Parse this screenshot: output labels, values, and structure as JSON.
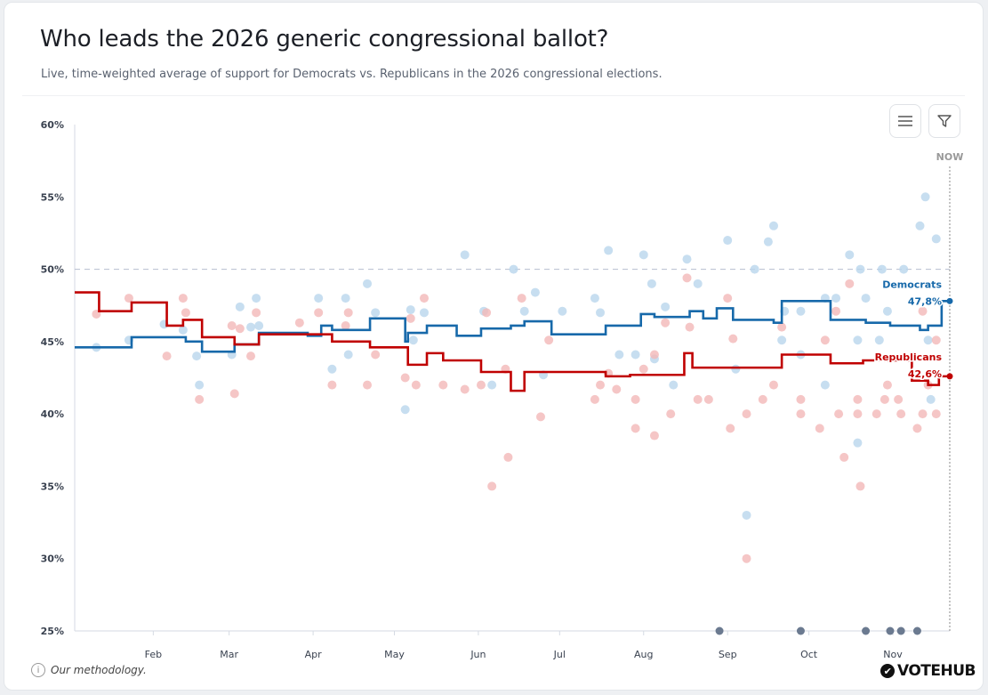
{
  "header": {
    "title": "Who leads the 2026 generic congressional ballot?",
    "subtitle": "Live, time-weighted average of support for Democrats vs. Republicans in the 2026 congressional elections."
  },
  "toolbar": {
    "menu_icon": "hamburger-icon",
    "filter_icon": "filter-icon"
  },
  "footer": {
    "methodology": "Our methodology.",
    "info_icon": "i",
    "logo": "VOTEHUB"
  },
  "colors": {
    "dem": "#1769aa",
    "rep": "#c00000",
    "dem_dot": "#b9d6ec",
    "rep_dot": "#f2b8b8",
    "marker": "#6b7a90"
  },
  "chart_data": {
    "type": "line",
    "title": "Who leads the 2026 generic congressional ballot?",
    "xlabel": "",
    "ylabel": "",
    "x_unit": "day of year 2025",
    "xlim": [
      2,
      325
    ],
    "ylim": [
      25,
      60
    ],
    "yticks": [
      25,
      30,
      35,
      40,
      45,
      50,
      55,
      60
    ],
    "ytick_labels": [
      "25%",
      "30%",
      "35%",
      "40%",
      "45%",
      "50%",
      "55%",
      "60%"
    ],
    "xticks": [
      31,
      59,
      90,
      120,
      151,
      181,
      212,
      243,
      273,
      304
    ],
    "xtick_labels": [
      "Feb",
      "Mar",
      "Apr",
      "May",
      "Jun",
      "Jul",
      "Aug",
      "Sep",
      "Oct",
      "Nov"
    ],
    "reference_line": 50,
    "now_label": "NOW",
    "series": [
      {
        "name": "Democrats",
        "end_label": "47,8%",
        "step": [
          [
            2,
            44.6
          ],
          [
            23,
            45.3
          ],
          [
            43,
            45.0
          ],
          [
            49,
            44.3
          ],
          [
            61,
            44.8
          ],
          [
            70,
            45.6
          ],
          [
            88,
            45.4
          ],
          [
            93,
            46.1
          ],
          [
            97,
            45.8
          ],
          [
            111,
            46.6
          ],
          [
            124,
            45.0
          ],
          [
            125,
            45.6
          ],
          [
            132,
            46.1
          ],
          [
            143,
            45.4
          ],
          [
            152,
            45.9
          ],
          [
            163,
            46.1
          ],
          [
            168,
            46.4
          ],
          [
            178,
            45.5
          ],
          [
            198,
            46.1
          ],
          [
            211,
            46.9
          ],
          [
            216,
            46.7
          ],
          [
            229,
            47.1
          ],
          [
            234,
            46.6
          ],
          [
            239,
            47.3
          ],
          [
            245,
            46.5
          ],
          [
            260,
            46.3
          ],
          [
            263,
            47.8
          ],
          [
            281,
            46.5
          ],
          [
            294,
            46.3
          ],
          [
            303,
            46.1
          ],
          [
            314,
            45.8
          ],
          [
            317,
            46.1
          ],
          [
            322,
            47.8
          ],
          [
            325,
            47.8
          ]
        ],
        "polls": [
          [
            10,
            44.6
          ],
          [
            22,
            45.1
          ],
          [
            35,
            46.2
          ],
          [
            42,
            45.8
          ],
          [
            47,
            44
          ],
          [
            48,
            42
          ],
          [
            60,
            44.1
          ],
          [
            63,
            47.4
          ],
          [
            67,
            46
          ],
          [
            69,
            48
          ],
          [
            70,
            46.1
          ],
          [
            92,
            48
          ],
          [
            97,
            43.1
          ],
          [
            102,
            48
          ],
          [
            103,
            44.1
          ],
          [
            110,
            49
          ],
          [
            113,
            47
          ],
          [
            124,
            40.3
          ],
          [
            126,
            47.2
          ],
          [
            127,
            45.1
          ],
          [
            131,
            47
          ],
          [
            146,
            51
          ],
          [
            153,
            47.1
          ],
          [
            156,
            42
          ],
          [
            164,
            50
          ],
          [
            168,
            47.1
          ],
          [
            172,
            48.4
          ],
          [
            175,
            42.7
          ],
          [
            182,
            47.1
          ],
          [
            194,
            48
          ],
          [
            196,
            47
          ],
          [
            199,
            51.3
          ],
          [
            203,
            44.1
          ],
          [
            209,
            44.1
          ],
          [
            212,
            51
          ],
          [
            215,
            49
          ],
          [
            216,
            43.8
          ],
          [
            220,
            47.4
          ],
          [
            223,
            42
          ],
          [
            228,
            50.7
          ],
          [
            232,
            49
          ],
          [
            243,
            52
          ],
          [
            246,
            43.1
          ],
          [
            250,
            33
          ],
          [
            253,
            50
          ],
          [
            258,
            51.9
          ],
          [
            260,
            53
          ],
          [
            263,
            45.1
          ],
          [
            264,
            47.1
          ],
          [
            270,
            47.1
          ],
          [
            270,
            44.1
          ],
          [
            279,
            42
          ],
          [
            279,
            48
          ],
          [
            283,
            48
          ],
          [
            288,
            51
          ],
          [
            292,
            50
          ],
          [
            291,
            45.1
          ],
          [
            291,
            38
          ],
          [
            294,
            48
          ],
          [
            299,
            45.1
          ],
          [
            300,
            50
          ],
          [
            302,
            47.1
          ],
          [
            308,
            50
          ],
          [
            314,
            53
          ],
          [
            316,
            55
          ],
          [
            320,
            52.1
          ],
          [
            318,
            41
          ],
          [
            317,
            45.1
          ]
        ]
      },
      {
        "name": "Republicans",
        "end_label": "42,6%",
        "step": [
          [
            2,
            48.4
          ],
          [
            11,
            47.1
          ],
          [
            23,
            47.7
          ],
          [
            36,
            46.1
          ],
          [
            42,
            46.5
          ],
          [
            49,
            45.3
          ],
          [
            61,
            44.8
          ],
          [
            70,
            45.5
          ],
          [
            97,
            45.0
          ],
          [
            111,
            44.6
          ],
          [
            125,
            43.4
          ],
          [
            132,
            44.2
          ],
          [
            138,
            43.7
          ],
          [
            152,
            42.9
          ],
          [
            163,
            41.6
          ],
          [
            168,
            42.9
          ],
          [
            198,
            42.6
          ],
          [
            207,
            42.7
          ],
          [
            227,
            44.2
          ],
          [
            230,
            43.2
          ],
          [
            263,
            44.1
          ],
          [
            281,
            43.5
          ],
          [
            293,
            43.7
          ],
          [
            311,
            42.3
          ],
          [
            317,
            42.0
          ],
          [
            321,
            42.6
          ],
          [
            325,
            42.6
          ]
        ],
        "polls": [
          [
            10,
            46.9
          ],
          [
            22,
            48
          ],
          [
            36,
            44
          ],
          [
            42,
            48
          ],
          [
            43,
            47
          ],
          [
            48,
            41
          ],
          [
            60,
            46.1
          ],
          [
            61,
            41.4
          ],
          [
            63,
            45.9
          ],
          [
            67,
            44
          ],
          [
            69,
            47
          ],
          [
            85,
            46.3
          ],
          [
            92,
            47
          ],
          [
            97,
            42
          ],
          [
            102,
            46.1
          ],
          [
            103,
            47
          ],
          [
            110,
            42
          ],
          [
            113,
            44.1
          ],
          [
            124,
            42.5
          ],
          [
            126,
            46.6
          ],
          [
            128,
            42
          ],
          [
            131,
            48
          ],
          [
            138,
            42
          ],
          [
            146,
            41.7
          ],
          [
            152,
            42
          ],
          [
            154,
            47
          ],
          [
            156,
            35
          ],
          [
            161,
            43.1
          ],
          [
            162,
            37
          ],
          [
            167,
            48
          ],
          [
            174,
            39.8
          ],
          [
            177,
            45.1
          ],
          [
            194,
            41
          ],
          [
            196,
            42
          ],
          [
            199,
            42.8
          ],
          [
            202,
            41.7
          ],
          [
            209,
            41
          ],
          [
            209,
            39
          ],
          [
            212,
            43.1
          ],
          [
            216,
            44.1
          ],
          [
            216,
            38.5
          ],
          [
            220,
            46.3
          ],
          [
            222,
            40
          ],
          [
            228,
            49.4
          ],
          [
            229,
            46
          ],
          [
            232,
            41
          ],
          [
            236,
            41
          ],
          [
            243,
            48
          ],
          [
            244,
            39
          ],
          [
            245,
            45.2
          ],
          [
            250,
            40
          ],
          [
            250,
            30
          ],
          [
            256,
            41
          ],
          [
            260,
            42
          ],
          [
            263,
            46
          ],
          [
            270,
            41
          ],
          [
            270,
            40
          ],
          [
            277,
            39
          ],
          [
            279,
            45.1
          ],
          [
            283,
            47.1
          ],
          [
            284,
            40
          ],
          [
            286,
            37
          ],
          [
            288,
            49
          ],
          [
            292,
            35
          ],
          [
            291,
            40
          ],
          [
            291,
            41
          ],
          [
            298,
            40
          ],
          [
            301,
            41
          ],
          [
            302,
            42
          ],
          [
            306,
            41
          ],
          [
            307,
            40
          ],
          [
            313,
            39
          ],
          [
            315,
            40
          ],
          [
            317,
            42
          ],
          [
            320,
            45.1
          ],
          [
            320,
            40
          ],
          [
            315,
            47.1
          ]
        ]
      }
    ],
    "axis_markers": [
      240,
      270,
      294,
      303,
      307,
      313
    ]
  }
}
